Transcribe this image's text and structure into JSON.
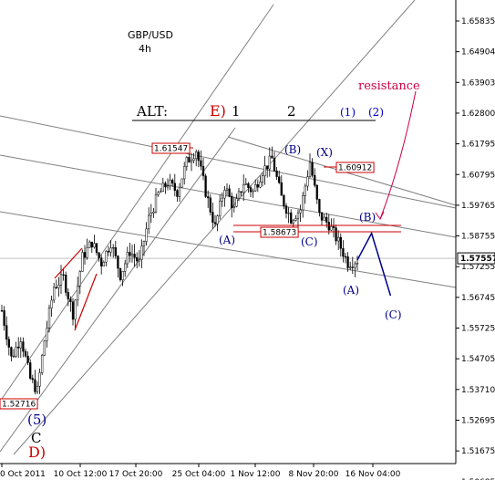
{
  "chart_data": {
    "type": "candlestick",
    "title": "GBP/USD",
    "subtitle": "4h",
    "x_tick_labels": [
      "0 Oct 2011",
      "10 Oct 12:00",
      "17 Oct 20:00",
      "25 Oct 04:00",
      "1 Nov 12:00",
      "8 Nov 20:00",
      "16 Nov 04:00"
    ],
    "y_tick_labels": [
      "1.65835",
      "1.64904",
      "1.63903",
      "1.62800",
      "1.61795",
      "1.60795",
      "1.59765",
      "1.58755",
      "1.57255",
      "1.56745",
      "1.55725",
      "1.54705",
      "1.53710",
      "1.52695",
      "1.51675",
      "1.50685"
    ],
    "ylim": [
      1.5065,
      1.6625
    ],
    "current_price": "1.57557",
    "price_boxes": [
      "1.61547",
      "1.60912",
      "1.58673",
      "1.52716"
    ],
    "anchor_points": [
      {
        "i": 0,
        "v": 1.558
      },
      {
        "i": 4,
        "v": 1.542
      },
      {
        "i": 8,
        "v": 1.549
      },
      {
        "i": 12,
        "v": 1.535
      },
      {
        "i": 15,
        "v": 1.531
      },
      {
        "i": 18,
        "v": 1.548
      },
      {
        "i": 22,
        "v": 1.566
      },
      {
        "i": 26,
        "v": 1.569
      },
      {
        "i": 30,
        "v": 1.557
      },
      {
        "i": 34,
        "v": 1.576
      },
      {
        "i": 38,
        "v": 1.581
      },
      {
        "i": 42,
        "v": 1.574
      },
      {
        "i": 46,
        "v": 1.581
      },
      {
        "i": 50,
        "v": 1.57
      },
      {
        "i": 54,
        "v": 1.578
      },
      {
        "i": 58,
        "v": 1.574
      },
      {
        "i": 62,
        "v": 1.589
      },
      {
        "i": 66,
        "v": 1.597
      },
      {
        "i": 70,
        "v": 1.601
      },
      {
        "i": 74,
        "v": 1.598
      },
      {
        "i": 78,
        "v": 1.608
      },
      {
        "i": 82,
        "v": 1.612
      },
      {
        "i": 86,
        "v": 1.598
      },
      {
        "i": 90,
        "v": 1.586
      },
      {
        "i": 94,
        "v": 1.6
      },
      {
        "i": 98,
        "v": 1.592
      },
      {
        "i": 102,
        "v": 1.601
      },
      {
        "i": 106,
        "v": 1.598
      },
      {
        "i": 110,
        "v": 1.605
      },
      {
        "i": 114,
        "v": 1.609
      },
      {
        "i": 118,
        "v": 1.596
      },
      {
        "i": 122,
        "v": 1.589
      },
      {
        "i": 126,
        "v": 1.592
      },
      {
        "i": 130,
        "v": 1.608
      },
      {
        "i": 134,
        "v": 1.59
      },
      {
        "i": 138,
        "v": 1.587
      },
      {
        "i": 142,
        "v": 1.581
      },
      {
        "i": 146,
        "v": 1.574
      },
      {
        "i": 150,
        "v": 1.575
      }
    ],
    "projection": [
      {
        "i": 150,
        "v": 1.575
      },
      {
        "i": 156,
        "v": 1.584
      },
      {
        "i": 164,
        "v": 1.563
      }
    ],
    "wave_labels": [
      {
        "text": "(5)",
        "color": "#00008b"
      },
      {
        "text": "C",
        "color": "#000000"
      },
      {
        "text": "D)",
        "color": "#cc0000"
      },
      {
        "text": "(A)",
        "color": "#00008b"
      },
      {
        "text": "(B)",
        "color": "#00008b"
      },
      {
        "text": "(X)",
        "color": "#00008b"
      },
      {
        "text": "(C)",
        "color": "#00008b"
      },
      {
        "text": "(A)",
        "color": "#00008b"
      },
      {
        "text": "(B)",
        "color": "#00008b"
      },
      {
        "text": "(C)",
        "color": "#00008b"
      }
    ],
    "alt_count": {
      "prefix": "ALT:",
      "e_label": "E)",
      "labels": [
        "1",
        "2",
        "(1)",
        "(2)"
      ],
      "colors": {
        "e": "#cc0000",
        "numbers": "#000000",
        "bracketed": "#0000cc"
      }
    },
    "annotation": "resistance",
    "colors": {
      "candles": "#000000",
      "channel": "#808080",
      "price_box": "#cc0000",
      "projection": "#00008b",
      "annotation": "#cc0044",
      "grid": "#c0c0c0"
    }
  }
}
